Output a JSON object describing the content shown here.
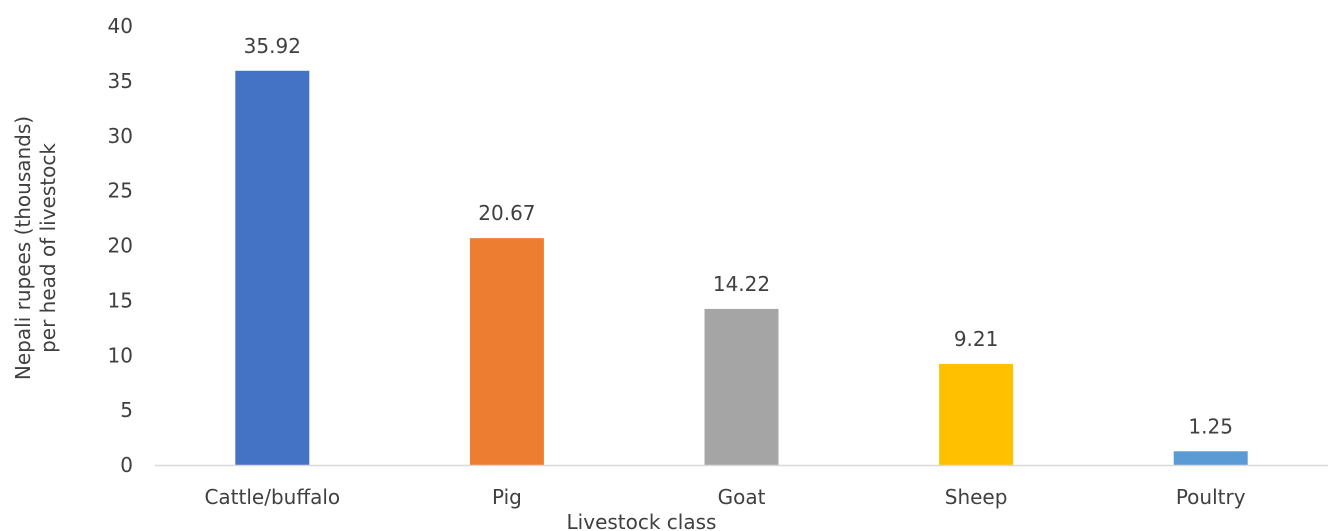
{
  "chart_data": {
    "type": "bar",
    "categories": [
      "Cattle/buffalo",
      "Pig",
      "Goat",
      "Sheep",
      "Poultry"
    ],
    "values": [
      35.92,
      20.67,
      14.22,
      9.21,
      1.25
    ],
    "data_labels": [
      "35.92",
      "20.67",
      "14.22",
      "9.21",
      "1.25"
    ],
    "colors": [
      "#4472c4",
      "#ed7d31",
      "#a5a5a5",
      "#ffc000",
      "#5b9bd5"
    ],
    "xlabel": "Livestock class",
    "ylabel_lines": [
      "Nepali rupees (thousands)",
      "per head of livestock"
    ],
    "ylim": [
      0,
      40
    ],
    "yticks": [
      0,
      5,
      10,
      15,
      20,
      25,
      30,
      35,
      40
    ],
    "grid": false,
    "legend": "none",
    "axis_color": "#d9d9d9",
    "text_color": "#404040"
  }
}
